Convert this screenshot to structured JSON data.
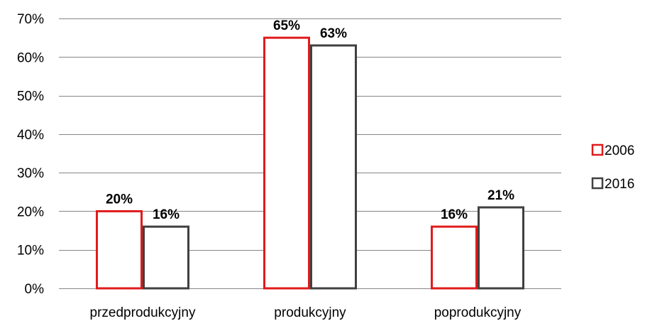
{
  "chart_data": {
    "type": "bar",
    "title": "",
    "xlabel": "",
    "ylabel": "",
    "categories": [
      "przedprodukcyjny",
      "produkcyjny",
      "poprodukcyjny"
    ],
    "series": [
      {
        "name": "2006",
        "values": [
          20,
          65,
          16
        ],
        "labels": [
          "20%",
          "65%",
          "16%"
        ],
        "stroke": "#e01b1b",
        "fill": "#ffffff"
      },
      {
        "name": "2016",
        "values": [
          16,
          63,
          21
        ],
        "labels": [
          "16%",
          "63%",
          "21%"
        ],
        "stroke": "#404040",
        "fill": "#ffffff"
      }
    ],
    "ylim": [
      0,
      70
    ],
    "yticks": [
      0,
      10,
      20,
      30,
      40,
      50,
      60,
      70
    ],
    "ytick_labels": [
      "0%",
      "10%",
      "20%",
      "30%",
      "40%",
      "50%",
      "60%",
      "70%"
    ],
    "grid": true,
    "legend_position": "right",
    "grid_color": "#868686"
  }
}
